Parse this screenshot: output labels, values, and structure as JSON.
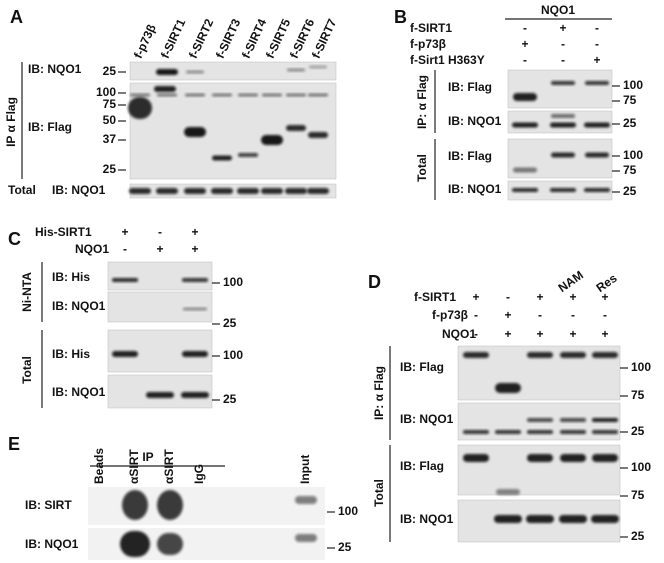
{
  "A": {
    "label": "A",
    "lanes": [
      "f-p73β",
      "f-SIRT1",
      "f-SIRT2",
      "f-SIRT3",
      "f-SIRT4",
      "f-SIRT5",
      "f-SIRT6",
      "f-SIRT7"
    ],
    "ip_label": "IP α Flag",
    "rows": [
      "IB: NQO1",
      "IB: Flag"
    ],
    "total_label": "Total",
    "total_row": "IB: NQO1",
    "markers": [
      25,
      100,
      75,
      50,
      37,
      25
    ]
  },
  "B": {
    "label": "B",
    "header": "NQO1",
    "conditions": [
      {
        "name": "f-SIRT1",
        "signs": [
          "-",
          "+",
          "-"
        ]
      },
      {
        "name": "f-p73β",
        "signs": [
          "+",
          "-",
          "-"
        ]
      },
      {
        "name": "f-Sirt1 H363Y",
        "signs": [
          "-",
          "-",
          "+"
        ]
      }
    ],
    "ip_label": "IP: α Flag",
    "rows": [
      "IB: Flag",
      "IB: NQO1"
    ],
    "total_label": "Total",
    "total_rows": [
      "IB: Flag",
      "IB: NQO1"
    ],
    "markers": [
      100,
      75,
      25,
      100,
      75,
      25
    ]
  },
  "C": {
    "label": "C",
    "conditions": [
      {
        "name": "His-SIRT1",
        "signs": [
          "+",
          "-",
          "+"
        ]
      },
      {
        "name": "NQO1",
        "signs": [
          "-",
          "+",
          "+"
        ]
      }
    ],
    "ip_label": "Ni-NTA",
    "rows": [
      "IB: His",
      "IB: NQO1"
    ],
    "total_label": "Total",
    "total_rows": [
      "IB: His",
      "IB: NQO1"
    ],
    "markers": [
      100,
      25,
      100,
      25
    ]
  },
  "D": {
    "label": "D",
    "treatments": [
      "NAM",
      "Res"
    ],
    "conditions": [
      {
        "name": "f-SIRT1",
        "signs": [
          "+",
          "-",
          "+",
          "+",
          "+"
        ]
      },
      {
        "name": "f-p73β",
        "signs": [
          "-",
          "+",
          "-",
          "-",
          "-"
        ]
      },
      {
        "name": "NQO1",
        "signs": [
          "-",
          "+",
          "+",
          "+",
          "+"
        ]
      }
    ],
    "ip_label": "IP: α Flag",
    "rows": [
      "IB: Flag",
      "IB: NQO1"
    ],
    "total_label": "Total",
    "total_rows": [
      "IB: Flag",
      "IB: NQO1"
    ],
    "markers": [
      100,
      75,
      25,
      100,
      75,
      25
    ]
  },
  "E": {
    "label": "E",
    "ip_header": "IP",
    "lanes": [
      "Beads",
      "αSIRT",
      "αSIRT",
      "IgG",
      "Input"
    ],
    "rows": [
      "IB: SIRT",
      "IB: NQO1"
    ],
    "markers": [
      100,
      25
    ]
  }
}
